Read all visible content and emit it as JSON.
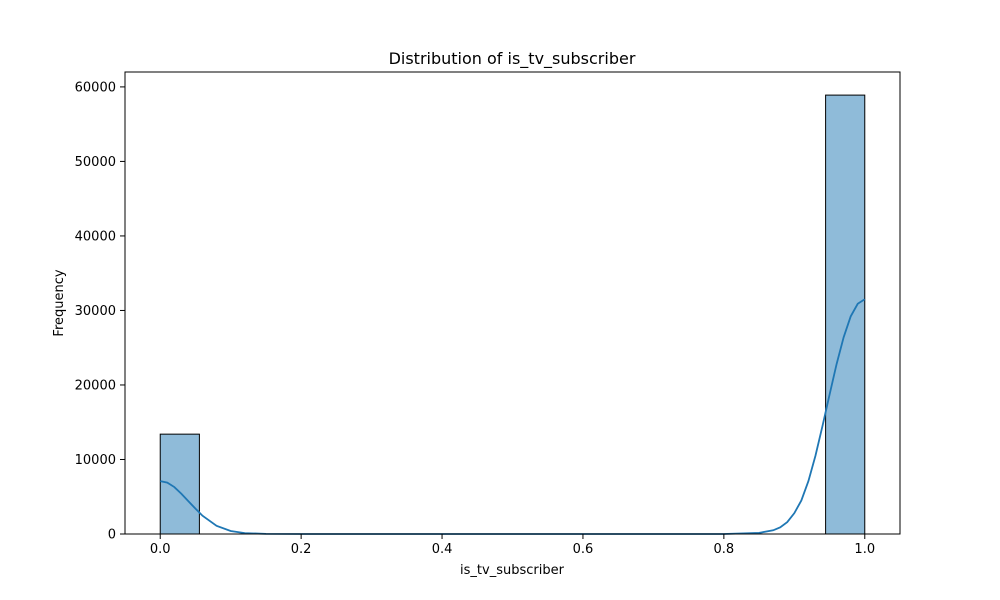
{
  "chart_data": {
    "type": "bar",
    "title": "Distribution of is_tv_subscriber",
    "xlabel": "is_tv_subscriber",
    "ylabel": "Frequency",
    "xlim": [
      -0.05,
      1.05
    ],
    "ylim": [
      0,
      62000
    ],
    "x_ticks": [
      0.0,
      0.2,
      0.4,
      0.6,
      0.8,
      1.0
    ],
    "x_tick_labels": [
      "0.0",
      "0.2",
      "0.4",
      "0.6",
      "0.8",
      "1.0"
    ],
    "y_ticks": [
      0,
      10000,
      20000,
      30000,
      40000,
      50000,
      60000
    ],
    "y_tick_labels": [
      "0",
      "10000",
      "20000",
      "30000",
      "40000",
      "50000",
      "60000"
    ],
    "bins": [
      {
        "x0": 0.0,
        "x1": 0.0556,
        "count": 13400
      },
      {
        "x0": 0.9444,
        "x1": 1.0,
        "count": 58900
      }
    ],
    "kde": {
      "x": [
        0.0,
        0.01,
        0.02,
        0.03,
        0.04,
        0.05,
        0.06,
        0.08,
        0.1,
        0.12,
        0.15,
        0.2,
        0.3,
        0.4,
        0.5,
        0.6,
        0.7,
        0.8,
        0.85,
        0.87,
        0.88,
        0.89,
        0.9,
        0.91,
        0.92,
        0.93,
        0.94,
        0.95,
        0.96,
        0.97,
        0.98,
        0.99,
        1.0
      ],
      "y": [
        7100,
        6900,
        6300,
        5400,
        4400,
        3400,
        2450,
        1100,
        400,
        120,
        20,
        0,
        0,
        0,
        0,
        0,
        0,
        0,
        150,
        500,
        900,
        1600,
        2800,
        4500,
        7100,
        10500,
        14500,
        18700,
        22800,
        26400,
        29200,
        30900,
        31500
      ]
    },
    "colors": {
      "bar_fill": "#8fbbd9",
      "bar_edge": "#000000",
      "kde_line": "#1f77b4"
    },
    "grid": false,
    "legend": "none"
  }
}
